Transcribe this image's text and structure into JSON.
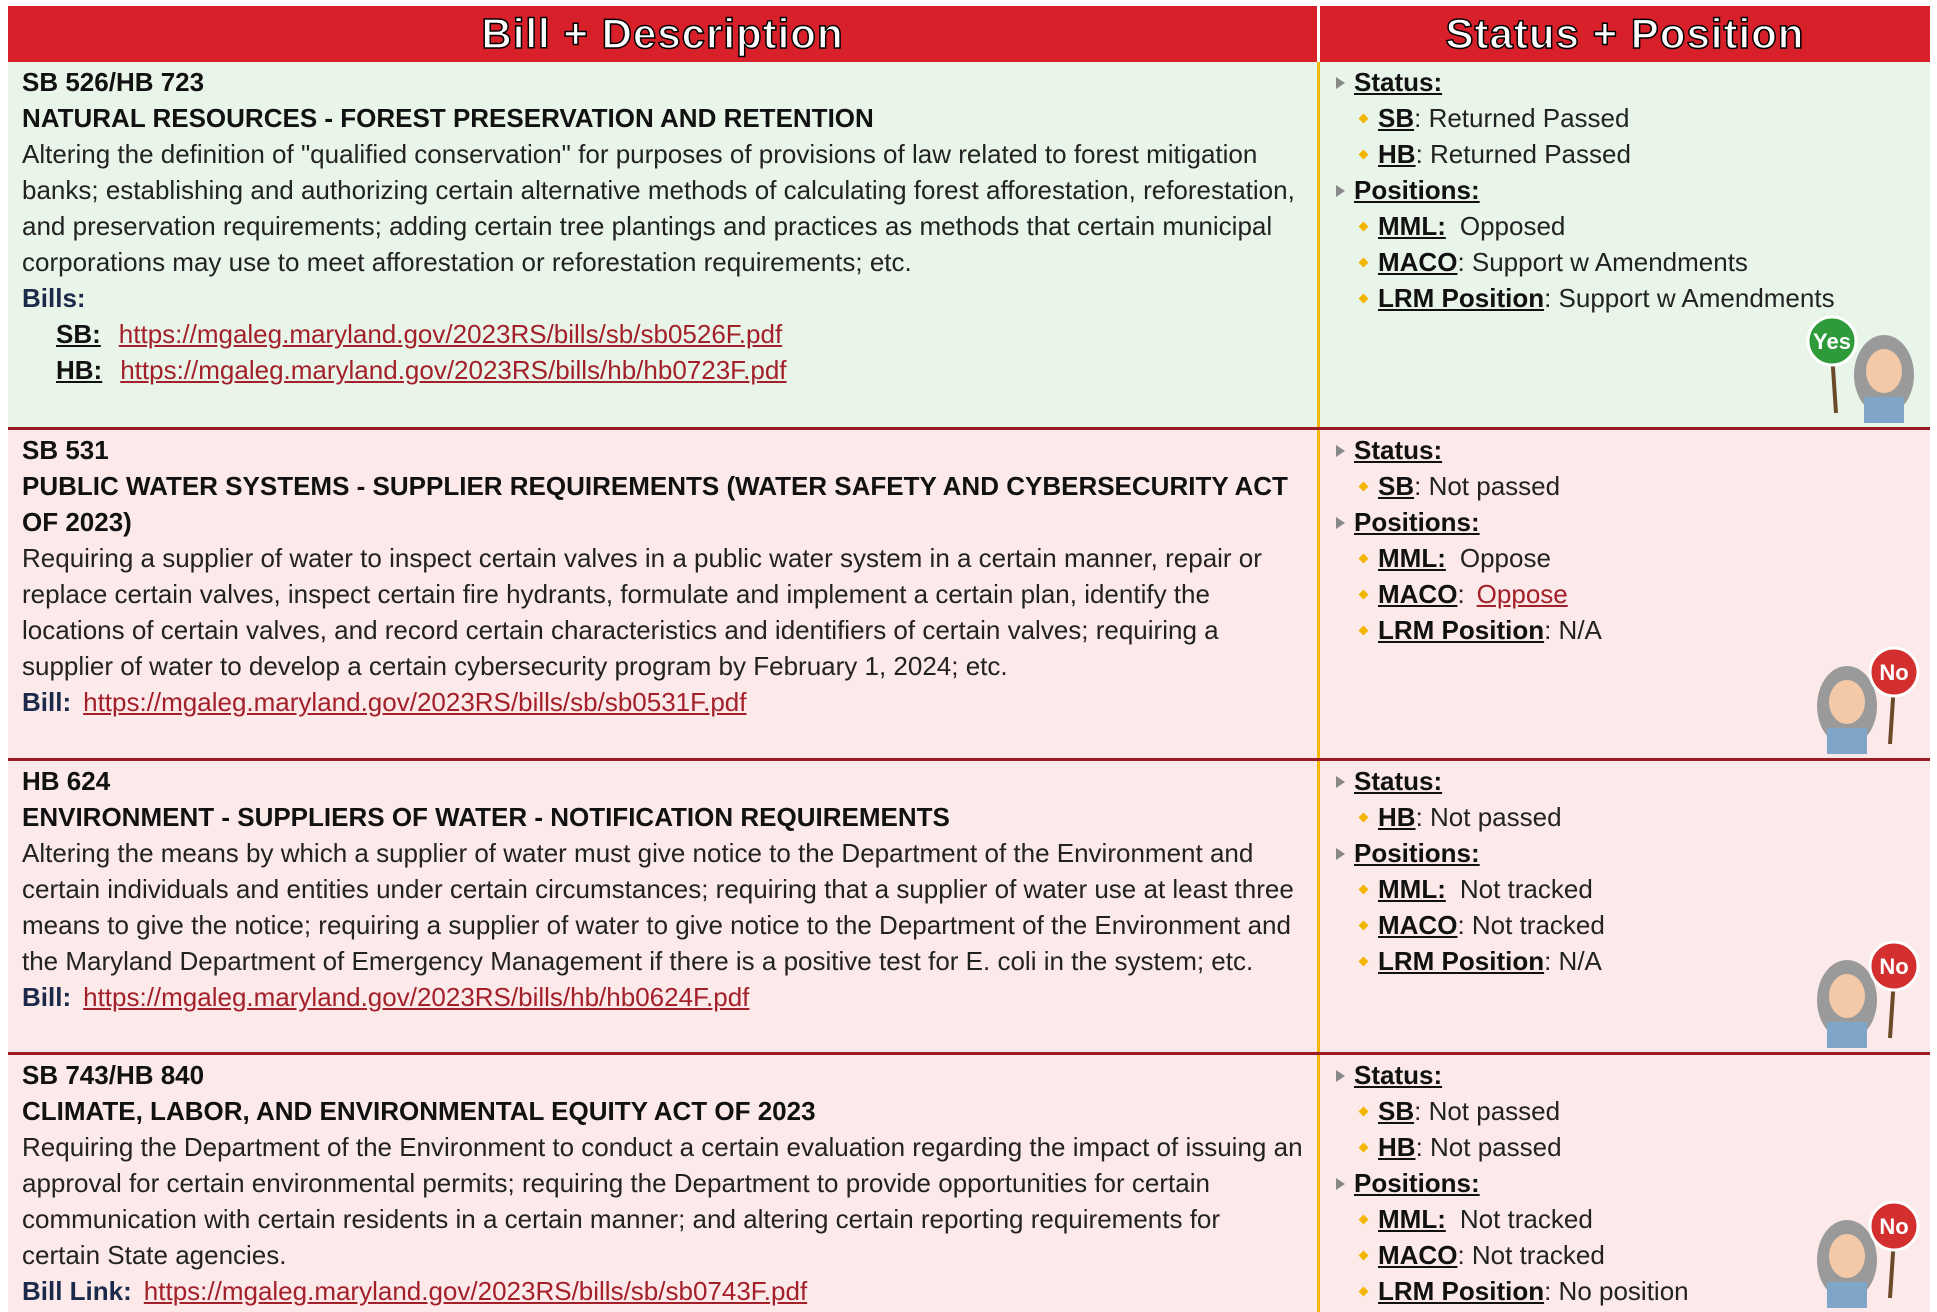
{
  "header": {
    "col1": "Bill + Description",
    "col2": "Status + Position"
  },
  "rows": [
    {
      "bill": "SB 526/HB 723",
      "title": "NATURAL RESOURCES - FOREST PRESERVATION AND RETENTION",
      "description": "Altering the definition of \"qualified conservation\" for purposes of provisions of law related to forest mitigation banks; establishing and authorizing certain alternative methods of calculating forest afforestation, reforestation, and preservation requirements; adding certain tree plantings and practices as methods that certain municipal corporations may use to meet afforestation or reforestation requirements; etc.",
      "links_label": "Bills:",
      "links": [
        {
          "label": "SB:",
          "url": "https://mgaleg.maryland.gov/2023RS/bills/sb/sb0526F.pdf"
        },
        {
          "label": "HB:",
          "url": "https://mgaleg.maryland.gov/2023RS/bills/hb/hb0723F.pdf"
        }
      ],
      "status_label": "Status:",
      "status": [
        {
          "label": "SB",
          "value": ":  Returned Passed"
        },
        {
          "label": "HB",
          "value": ":  Returned Passed"
        }
      ],
      "positions_label": "Positions:",
      "positions": [
        {
          "label": "MML:",
          "value": "Opposed"
        },
        {
          "label": "MACO",
          "value": ":  Support w Amendments"
        },
        {
          "label": "LRM Position",
          "value": ":  Support w Amendments"
        }
      ],
      "badge": "Yes",
      "bg": "#e9f5e8"
    },
    {
      "bill": "SB 531",
      "title": "PUBLIC WATER SYSTEMS - SUPPLIER REQUIREMENTS (WATER SAFETY AND CYBERSECURITY ACT OF 2023)",
      "description": "Requiring a supplier of water to inspect certain valves in a public water system in a certain manner, repair or replace certain valves, inspect certain fire hydrants, formulate and implement a certain plan, identify the locations of certain valves, and record certain characteristics and identifiers of certain valves; requiring a supplier of water to develop a certain cybersecurity program by February 1, 2024; etc.",
      "links_label": "Bill:",
      "links": [
        {
          "url": "https://mgaleg.maryland.gov/2023RS/bills/sb/sb0531F.pdf"
        }
      ],
      "status_label": "Status:",
      "status": [
        {
          "label": "SB",
          "value": ":  Not passed"
        }
      ],
      "positions_label": "Positions:",
      "positions": [
        {
          "label": "MML:",
          "value": "Oppose"
        },
        {
          "label": "MACO",
          "value": ":",
          "link": "Oppose"
        },
        {
          "label": "LRM Position",
          "value": ":  N/A"
        }
      ],
      "badge": "No",
      "bg": "#fce9e9"
    },
    {
      "bill": "HB 624",
      "title": "ENVIRONMENT - SUPPLIERS OF WATER - NOTIFICATION REQUIREMENTS",
      "description": "Altering the means by which a supplier of water must give notice to the Department of the Environment and certain individuals and entities under certain circumstances; requiring that a supplier of water use at least three means to give the notice; requiring a supplier of water to give notice to the Department of the Environment and the Maryland Department of Emergency Management if there is a positive test for E. coli in the system; etc.",
      "links_label": "Bill:",
      "links": [
        {
          "url": "https://mgaleg.maryland.gov/2023RS/bills/hb/hb0624F.pdf"
        }
      ],
      "status_label": "Status:",
      "status": [
        {
          "label": "HB",
          "value": ":  Not passed"
        }
      ],
      "positions_label": "Positions:",
      "positions": [
        {
          "label": "MML:",
          "value": "Not tracked"
        },
        {
          "label": "MACO",
          "value": ":  Not tracked"
        },
        {
          "label": "LRM Position",
          "value": ":  N/A"
        }
      ],
      "badge": "No",
      "bg": "#fce9e9"
    },
    {
      "bill": "SB 743/HB 840",
      "title": "CLIMATE, LABOR, AND ENVIRONMENTAL EQUITY ACT OF 2023",
      "description": "Requiring the Department of the Environment to conduct a certain evaluation regarding the impact of issuing an approval for certain environmental permits; requiring the Department to provide opportunities for certain communication with certain residents in a certain manner; and altering certain reporting requirements for certain State agencies.",
      "links_label": "Bill Link:",
      "links": [
        {
          "url": "https://mgaleg.maryland.gov/2023RS/bills/sb/sb0743F.pdf"
        }
      ],
      "status_label": "Status:",
      "status": [
        {
          "label": "SB",
          "value": ":  Not passed"
        },
        {
          "label": "HB",
          "value": ":  Not passed"
        }
      ],
      "positions_label": "Positions:",
      "positions": [
        {
          "label": "MML:",
          "value": "Not tracked"
        },
        {
          "label": "MACO",
          "value": ":  Not tracked"
        },
        {
          "label": "LRM Position",
          "value": ":  No position"
        }
      ],
      "badge": "No",
      "bg": "#fce9e9"
    }
  ]
}
